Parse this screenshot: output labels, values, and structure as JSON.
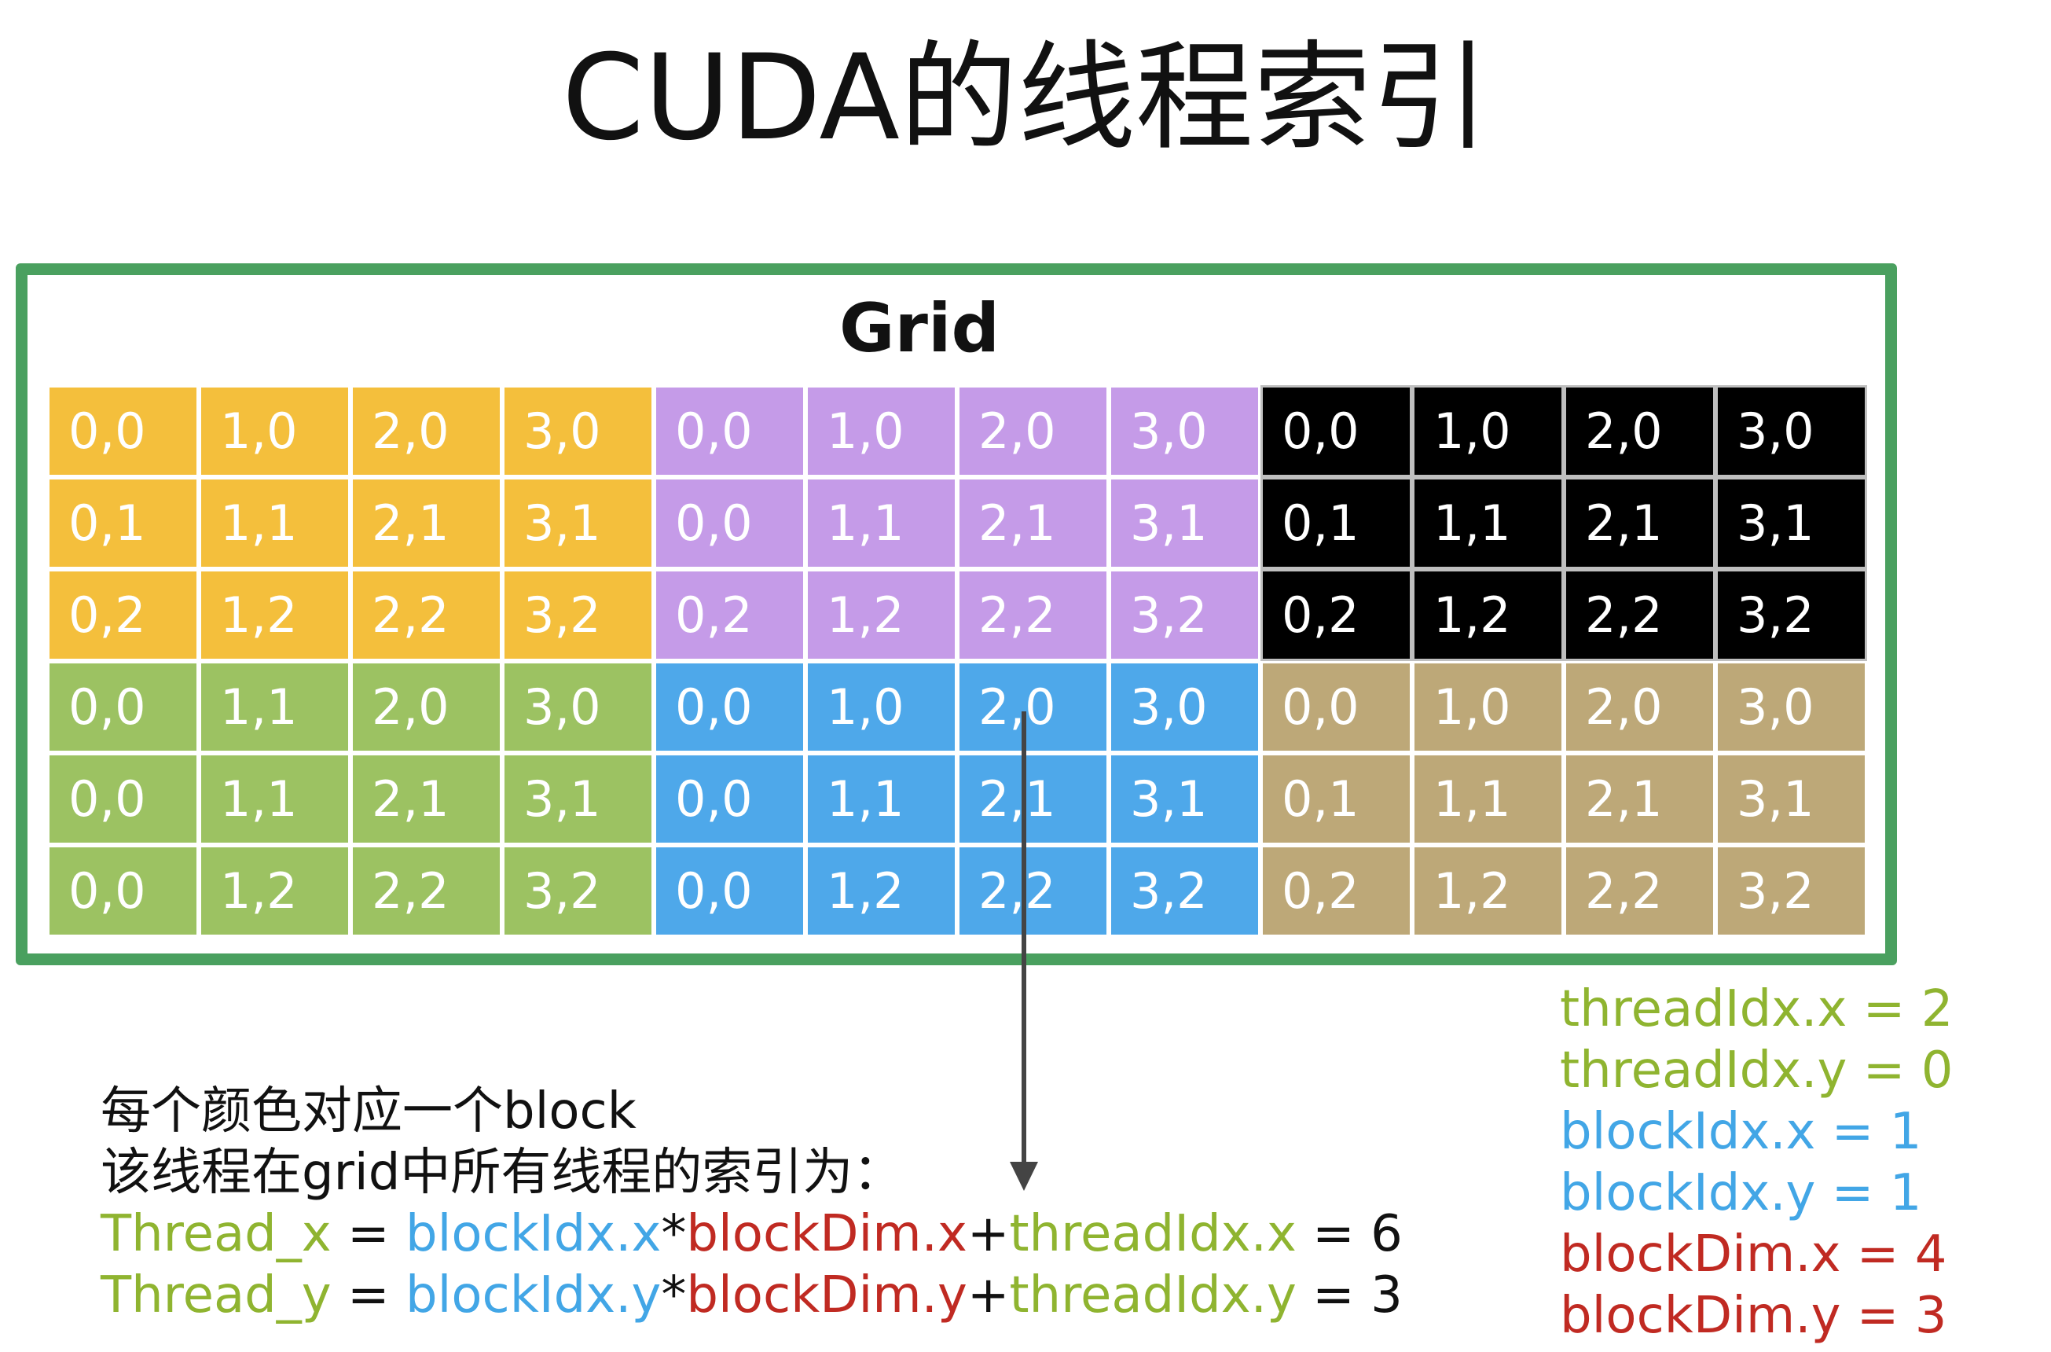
{
  "title": "CUDA的线程索引",
  "grid_label": "Grid",
  "colors": {
    "frame": "#4aa05f",
    "orange": "#f4bf3c",
    "purple": "#c59be8",
    "black": "#000000",
    "green": "#9cc262",
    "blue": "#4ea8ea",
    "tan": "#bda878",
    "text_green": "#8fb430",
    "text_blue": "#42a6e6",
    "text_red": "#c02a22"
  },
  "blocks": [
    {
      "color": "orange",
      "dark": false,
      "rows": [
        [
          "0,0",
          "1,0",
          "2,0",
          "3,0"
        ],
        [
          "0,1",
          "1,1",
          "2,1",
          "3,1"
        ],
        [
          "0,2",
          "1,2",
          "2,2",
          "3,2"
        ]
      ]
    },
    {
      "color": "purple",
      "dark": false,
      "rows": [
        [
          "0,0",
          "1,0",
          "2,0",
          "3,0"
        ],
        [
          "0,0",
          "1,1",
          "2,1",
          "3,1"
        ],
        [
          "0,2",
          "1,2",
          "2,2",
          "3,2"
        ]
      ]
    },
    {
      "color": "black",
      "dark": true,
      "rows": [
        [
          "0,0",
          "1,0",
          "2,0",
          "3,0"
        ],
        [
          "0,1",
          "1,1",
          "2,1",
          "3,1"
        ],
        [
          "0,2",
          "1,2",
          "2,2",
          "3,2"
        ]
      ]
    },
    {
      "color": "green",
      "dark": false,
      "rows": [
        [
          "0,0",
          "1,1",
          "2,0",
          "3,0"
        ],
        [
          "0,0",
          "1,1",
          "2,1",
          "3,1"
        ],
        [
          "0,0",
          "1,2",
          "2,2",
          "3,2"
        ]
      ]
    },
    {
      "color": "blue",
      "dark": false,
      "rows": [
        [
          "0,0",
          "1,0",
          "2,0",
          "3,0"
        ],
        [
          "0,0",
          "1,1",
          "2,1",
          "3,1"
        ],
        [
          "0,0",
          "1,2",
          "2,2",
          "3,2"
        ]
      ]
    },
    {
      "color": "tan",
      "dark": false,
      "rows": [
        [
          "0,0",
          "1,0",
          "2,0",
          "3,0"
        ],
        [
          "0,1",
          "1,1",
          "2,1",
          "3,1"
        ],
        [
          "0,2",
          "1,2",
          "2,2",
          "3,2"
        ]
      ]
    }
  ],
  "description": {
    "line1": "每个颜色对应一个block",
    "line2": "该线程在grid中所有线程的索引为："
  },
  "formula_x": {
    "lhs": "Thread_x",
    "eq": " = ",
    "block_idx": "blockIdx.x",
    "mul": "*",
    "block_dim": "blockDim.x",
    "plus": "+",
    "thread_idx": "threadIdx.x",
    "result": " = 6"
  },
  "formula_y": {
    "lhs": "Thread_y",
    "eq": " = ",
    "block_idx": "blockIdx.y",
    "mul": "*",
    "block_dim": "blockDim.y",
    "plus": "+",
    "thread_idx": "threadIdx.y",
    "result": " = 3"
  },
  "values": {
    "thread_x": "threadIdx.x = 2",
    "thread_y": "threadIdx.y = 0",
    "block_x": "blockIdx.x = 1",
    "block_y": "blockIdx.y = 1",
    "dim_x": "blockDim.x = 4",
    "dim_y": "blockDim.y = 3"
  }
}
